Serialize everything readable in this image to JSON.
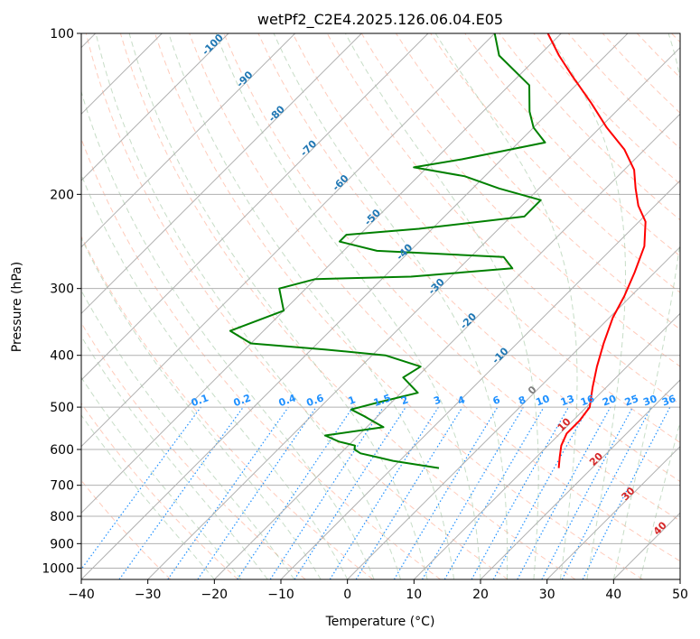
{
  "chart_data": {
    "type": "skew-t",
    "title": "wetPf2_C2E4.2025.126.06.04.E05",
    "xlabel": "Temperature (°C)",
    "ylabel": "Pressure (hPa)",
    "xlim": [
      -40,
      50
    ],
    "ylim": [
      1050,
      100
    ],
    "y_scale": "log",
    "grid": true,
    "x_ticks": [
      -40,
      -30,
      -20,
      -10,
      0,
      10,
      20,
      30,
      40,
      50
    ],
    "y_ticks": [
      100,
      200,
      300,
      400,
      500,
      600,
      700,
      800,
      900,
      1000
    ],
    "series": [
      {
        "color": "#ff0000",
        "points": [
          {
            "p": 650,
            "t": 15.0
          },
          {
            "p": 620,
            "t": 13.5
          },
          {
            "p": 590,
            "t": 12.0
          },
          {
            "p": 560,
            "t": 11.0
          },
          {
            "p": 530,
            "t": 11.0
          },
          {
            "p": 500,
            "t": 10.5
          },
          {
            "p": 460,
            "t": 8.0
          },
          {
            "p": 420,
            "t": 5.5
          },
          {
            "p": 380,
            "t": 3.0
          },
          {
            "p": 340,
            "t": 0.5
          },
          {
            "p": 310,
            "t": -1.0
          },
          {
            "p": 280,
            "t": -3.0
          },
          {
            "p": 250,
            "t": -5.5
          },
          {
            "p": 225,
            "t": -9.0
          },
          {
            "p": 210,
            "t": -12.5
          },
          {
            "p": 195,
            "t": -15.5
          },
          {
            "p": 180,
            "t": -18.5
          },
          {
            "p": 165,
            "t": -23.0
          },
          {
            "p": 150,
            "t": -29.0
          },
          {
            "p": 135,
            "t": -35.0
          },
          {
            "p": 120,
            "t": -42.0
          },
          {
            "p": 110,
            "t": -47.0
          },
          {
            "p": 100,
            "t": -52.0
          }
        ]
      },
      {
        "color": "#008000",
        "points": [
          {
            "p": 650,
            "t": -3.0
          },
          {
            "p": 640,
            "t": -7.0
          },
          {
            "p": 630,
            "t": -11.0
          },
          {
            "p": 620,
            "t": -14.0
          },
          {
            "p": 610,
            "t": -17.0
          },
          {
            "p": 600,
            "t": -18.5
          },
          {
            "p": 590,
            "t": -19.0
          },
          {
            "p": 580,
            "t": -22.0
          },
          {
            "p": 565,
            "t": -25.0
          },
          {
            "p": 545,
            "t": -17.5
          },
          {
            "p": 520,
            "t": -22.0
          },
          {
            "p": 505,
            "t": -25.0
          },
          {
            "p": 490,
            "t": -22.0
          },
          {
            "p": 470,
            "t": -17.5
          },
          {
            "p": 440,
            "t": -22.0
          },
          {
            "p": 420,
            "t": -21.0
          },
          {
            "p": 400,
            "t": -28.0
          },
          {
            "p": 390,
            "t": -38.0
          },
          {
            "p": 380,
            "t": -50.0
          },
          {
            "p": 360,
            "t": -55.0
          },
          {
            "p": 330,
            "t": -50.0
          },
          {
            "p": 300,
            "t": -54.0
          },
          {
            "p": 288,
            "t": -50.0
          },
          {
            "p": 285,
            "t": -36.0
          },
          {
            "p": 275,
            "t": -22.0
          },
          {
            "p": 262,
            "t": -25.0
          },
          {
            "p": 255,
            "t": -45.0
          },
          {
            "p": 245,
            "t": -52.0
          },
          {
            "p": 238,
            "t": -52.0
          },
          {
            "p": 232,
            "t": -42.0
          },
          {
            "p": 220,
            "t": -28.0
          },
          {
            "p": 205,
            "t": -28.0
          },
          {
            "p": 195,
            "t": -36.0
          },
          {
            "p": 185,
            "t": -43.0
          },
          {
            "p": 178,
            "t": -52.0
          },
          {
            "p": 172,
            "t": -46.0
          },
          {
            "p": 160,
            "t": -36.0
          },
          {
            "p": 150,
            "t": -40.0
          },
          {
            "p": 140,
            "t": -43.0
          },
          {
            "p": 125,
            "t": -47.0
          },
          {
            "p": 110,
            "t": -56.0
          },
          {
            "p": 100,
            "t": -60.0
          }
        ]
      }
    ],
    "isotherm_labels": [
      "-100",
      "-90",
      "-80",
      "-70",
      "-60",
      "-50",
      "-40",
      "-30",
      "-20",
      "-10",
      "0",
      "10",
      "20",
      "30",
      "40"
    ],
    "mixing_ratio_labels": [
      "0.1",
      "0.2",
      "0.4",
      "0.6",
      "1",
      "1.5",
      "2",
      "3",
      "4",
      "6",
      "8",
      "10",
      "13",
      "16",
      "20",
      "25",
      "30",
      "36"
    ],
    "colors": {
      "temperature": "#ff0000",
      "dewpoint": "#008000",
      "isotherm_cold": "#1f77b4",
      "isotherm_warm": "#d62728",
      "isotherm_zero": "#7f7f7f",
      "mixing_ratio": "#1e90ff",
      "dry_adiabat": "#ff8c69",
      "moist_adiabat": "#8fbc8f",
      "grid": "#b0b0b0"
    }
  }
}
